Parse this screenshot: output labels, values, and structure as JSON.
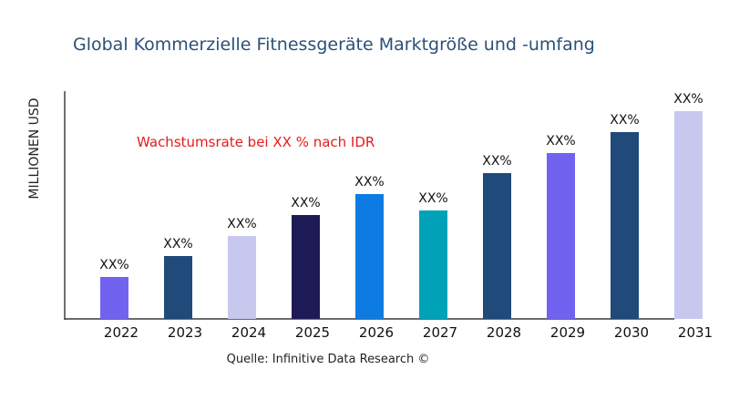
{
  "chart_data": {
    "type": "bar",
    "title": "Global Kommerzielle Fitnessgeräte Marktgröße und -umfang",
    "ylabel": "MILLIONEN USD",
    "xlabel": "",
    "categories": [
      "2022",
      "2023",
      "2024",
      "2025",
      "2026",
      "2027",
      "2028",
      "2029",
      "2030",
      "2031"
    ],
    "values": [
      46,
      69,
      91,
      114,
      137,
      119,
      160,
      182,
      205,
      228
    ],
    "data_labels": [
      "XX%",
      "XX%",
      "XX%",
      "XX%",
      "XX%",
      "XX%",
      "XX%",
      "XX%",
      "XX%",
      "XX%"
    ],
    "colors": [
      "#7163f0",
      "#1f4a7a",
      "#c8c8ef",
      "#1e1a56",
      "#0e7be3",
      "#00a2b8",
      "#1f4a7a",
      "#7163f0",
      "#1f4a7a",
      "#c8c8ef"
    ],
    "ylim": [
      0,
      250
    ],
    "grid": false,
    "legend": "none",
    "annotation": "Wachstumsrate bei XX % nach IDR",
    "annotation_color": "#e31c1c",
    "source": "Quelle: Infinitive Data Research ©"
  }
}
